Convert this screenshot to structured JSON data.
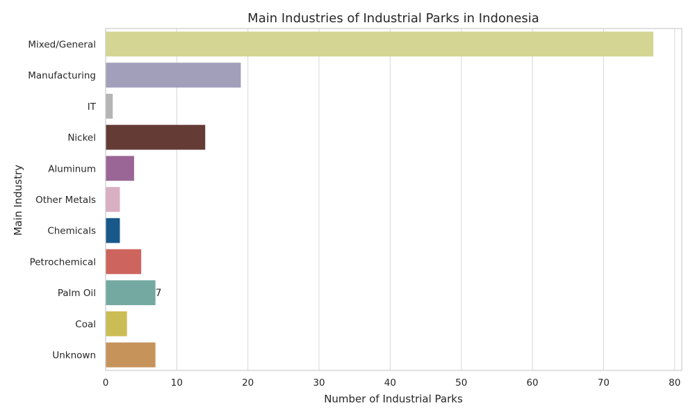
{
  "chart_data": {
    "type": "bar",
    "orientation": "horizontal",
    "title": "Main Industries of Industrial Parks in Indonesia",
    "xlabel": "Number of Industrial Parks",
    "ylabel": "Main Industry",
    "xlim": [
      0,
      81
    ],
    "xticks": [
      0,
      10,
      20,
      30,
      40,
      50,
      60,
      70,
      80
    ],
    "grid": "vertical",
    "categories": [
      "Mixed/General",
      "Manufacturing",
      "IT",
      "Nickel",
      "Aluminum",
      "Other Metals",
      "Chemicals",
      "Petrochemical",
      "Palm Oil",
      "Coal",
      "Unknown"
    ],
    "values": [
      77,
      19,
      1,
      14,
      4,
      2,
      2,
      5,
      7,
      3,
      7
    ],
    "colors": [
      "#d4d592",
      "#a29fba",
      "#b5b5b5",
      "#643b35",
      "#9a6695",
      "#d9afc3",
      "#19588a",
      "#cd645d",
      "#73a9a1",
      "#cbbd55",
      "#c6935a"
    ],
    "data_labels": [
      {
        "category": "Palm Oil",
        "text": "7"
      }
    ]
  }
}
